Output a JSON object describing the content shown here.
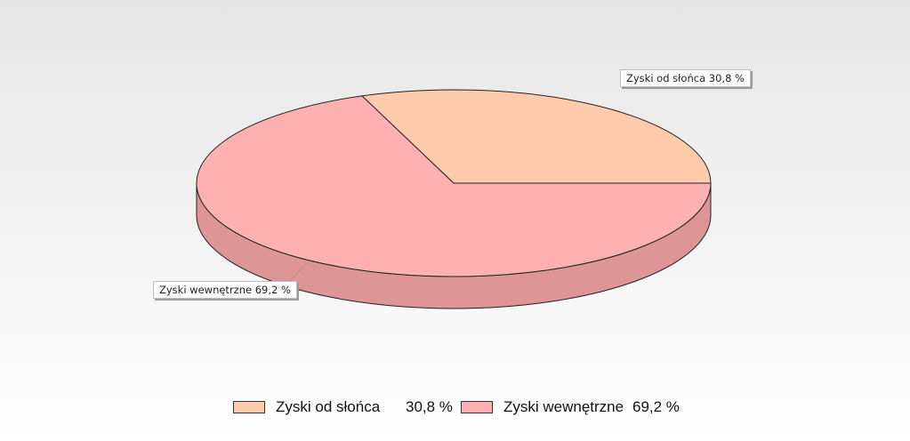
{
  "chart_data": {
    "type": "pie",
    "style": "3d",
    "title": "",
    "slices": [
      {
        "label": "Zyski od słońca",
        "value": 30.8,
        "value_text": "30,8 %",
        "callout": "Zyski od słońca 30,8 %",
        "color": "#ffcbad",
        "side_color": "#e0a98a"
      },
      {
        "label": "Zyski wewnętrzne",
        "value": 69.2,
        "value_text": "69,2 %",
        "callout": "Zyski wewnętrzne 69,2 %",
        "color": "#ffb0b0",
        "side_color": "#de9595"
      }
    ],
    "legend_position": "bottom"
  }
}
